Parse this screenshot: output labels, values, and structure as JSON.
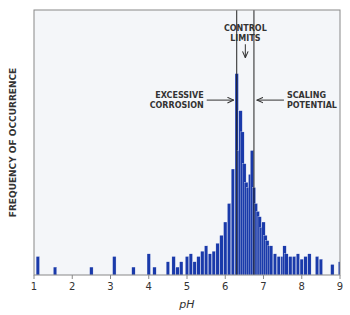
{
  "chart_data": {
    "type": "bar",
    "xlabel": "pH",
    "ylabel": "FREQUENCY OF OCCURRENCE",
    "color": "#1a3aaa",
    "x": [
      1.1,
      1.55,
      2.5,
      3.1,
      3.6,
      4.0,
      4.15,
      4.5,
      4.65,
      4.75,
      4.85,
      5.0,
      5.1,
      5.2,
      5.3,
      5.4,
      5.5,
      5.6,
      5.7,
      5.8,
      5.9,
      6.0,
      6.1,
      6.2,
      6.3,
      6.35,
      6.4,
      6.45,
      6.5,
      6.55,
      6.6,
      6.65,
      6.7,
      6.75,
      6.8,
      6.85,
      6.9,
      6.95,
      7.0,
      7.05,
      7.1,
      7.15,
      7.2,
      7.3,
      7.4,
      7.5,
      7.55,
      7.6,
      7.7,
      7.8,
      7.9,
      8.0,
      8.1,
      8.2,
      8.4,
      8.5,
      8.8,
      9.0
    ],
    "values": [
      0.07,
      0.03,
      0.03,
      0.07,
      0.03,
      0.08,
      0.03,
      0.05,
      0.07,
      0.03,
      0.05,
      0.07,
      0.08,
      0.05,
      0.07,
      0.09,
      0.11,
      0.08,
      0.09,
      0.12,
      0.15,
      0.2,
      0.27,
      0.4,
      0.76,
      0.47,
      0.62,
      0.54,
      0.42,
      0.35,
      0.33,
      0.38,
      0.47,
      0.33,
      0.27,
      0.24,
      0.22,
      0.18,
      0.2,
      0.15,
      0.13,
      0.11,
      0.11,
      0.08,
      0.07,
      0.07,
      0.11,
      0.08,
      0.07,
      0.07,
      0.08,
      0.06,
      0.07,
      0.08,
      0.07,
      0.06,
      0.04,
      0.05
    ],
    "control_lines": [
      6.3,
      6.75
    ],
    "annotations": [
      "CONTROL\nLIMITS",
      "EXCESSIVE\nCORROSION",
      "SCALING\nPOTENTIAL"
    ],
    "xlim": [
      1,
      9
    ],
    "xticks": [
      1,
      2,
      3,
      4,
      5,
      6,
      7,
      8,
      9
    ],
    "ylim": [
      0,
      1.0
    ],
    "yticks": [],
    "tick_labels": "x"
  }
}
